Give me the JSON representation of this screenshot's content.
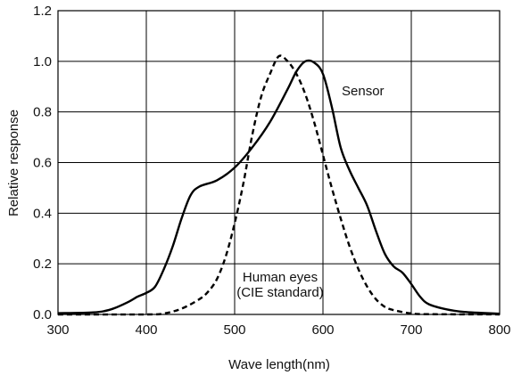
{
  "chart_data": {
    "type": "line",
    "title": "",
    "xlabel": "Wave length(nm)",
    "ylabel": "Relative response",
    "xlim": [
      300,
      800
    ],
    "ylim": [
      0,
      1.2
    ],
    "x_ticks": [
      300,
      400,
      500,
      600,
      700,
      800
    ],
    "y_ticks": [
      0.0,
      0.2,
      0.4,
      0.6,
      0.8,
      1.0,
      1.2
    ],
    "x_tick_labels": [
      "300",
      "400",
      "500",
      "600",
      "700",
      "800"
    ],
    "y_tick_labels": [
      "0.0",
      "0.2",
      "0.4",
      "0.6",
      "0.8",
      "1.0",
      "1.2"
    ],
    "grid": true,
    "series": [
      {
        "name": "Sensor",
        "style": "solid",
        "color": "#000000",
        "x": [
          300,
          340,
          360,
          380,
          390,
          400,
          410,
          420,
          430,
          440,
          450,
          460,
          480,
          500,
          520,
          540,
          560,
          570,
          580,
          590,
          600,
          610,
          620,
          630,
          640,
          650,
          660,
          670,
          680,
          690,
          700,
          710,
          720,
          740,
          760,
          800
        ],
        "y": [
          0.005,
          0.008,
          0.02,
          0.05,
          0.07,
          0.085,
          0.11,
          0.18,
          0.27,
          0.38,
          0.47,
          0.505,
          0.53,
          0.58,
          0.66,
          0.76,
          0.89,
          0.96,
          1.0,
          0.995,
          0.95,
          0.82,
          0.66,
          0.57,
          0.5,
          0.43,
          0.33,
          0.24,
          0.19,
          0.165,
          0.12,
          0.07,
          0.04,
          0.02,
          0.01,
          0.003
        ]
      },
      {
        "name": "Human eyes (CIE standard)",
        "style": "dashed",
        "color": "#000000",
        "x": [
          300,
          400,
          420,
          440,
          460,
          470,
          480,
          490,
          500,
          510,
          520,
          530,
          540,
          550,
          560,
          570,
          580,
          590,
          600,
          610,
          620,
          630,
          640,
          650,
          660,
          670,
          680,
          700,
          720,
          800
        ],
        "y": [
          0.0,
          0.0,
          0.004,
          0.023,
          0.06,
          0.09,
          0.14,
          0.23,
          0.36,
          0.52,
          0.71,
          0.86,
          0.95,
          1.02,
          1.0,
          0.95,
          0.87,
          0.76,
          0.63,
          0.5,
          0.38,
          0.27,
          0.18,
          0.11,
          0.06,
          0.03,
          0.017,
          0.004,
          0.001,
          0.0
        ]
      }
    ],
    "annotations": [
      {
        "id": "sensor",
        "text": "Sensor"
      },
      {
        "id": "eyes1",
        "text": "Human eyes"
      },
      {
        "id": "eyes2",
        "text": "(CIE standard)"
      }
    ]
  }
}
